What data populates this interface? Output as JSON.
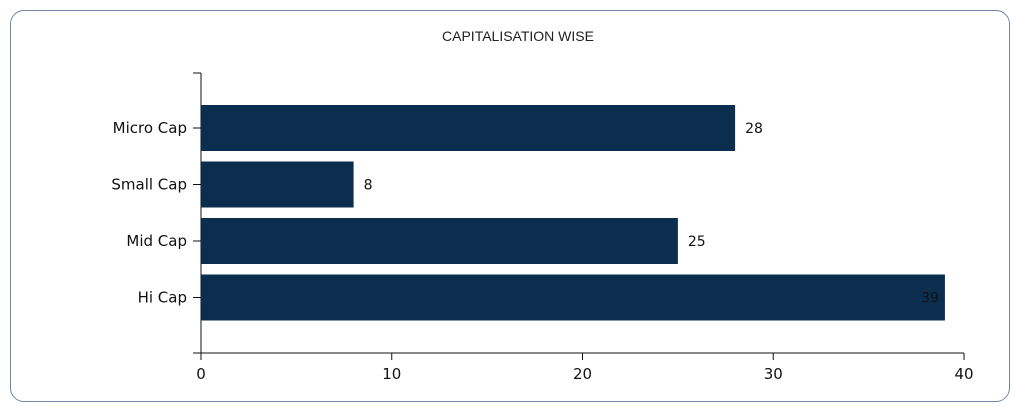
{
  "chart_data": {
    "type": "bar",
    "orientation": "horizontal",
    "title": "CAPITALISATION WISE",
    "xlabel": "",
    "ylabel": "",
    "categories": [
      "Micro Cap",
      "Small Cap",
      "Mid Cap",
      "Hi Cap"
    ],
    "values": [
      28,
      8,
      25,
      39
    ],
    "xlim": [
      0,
      40
    ],
    "xticks": [
      0,
      10,
      20,
      30,
      40
    ],
    "bar_color": "#0b2e4f",
    "grid": false,
    "legend": "none"
  }
}
